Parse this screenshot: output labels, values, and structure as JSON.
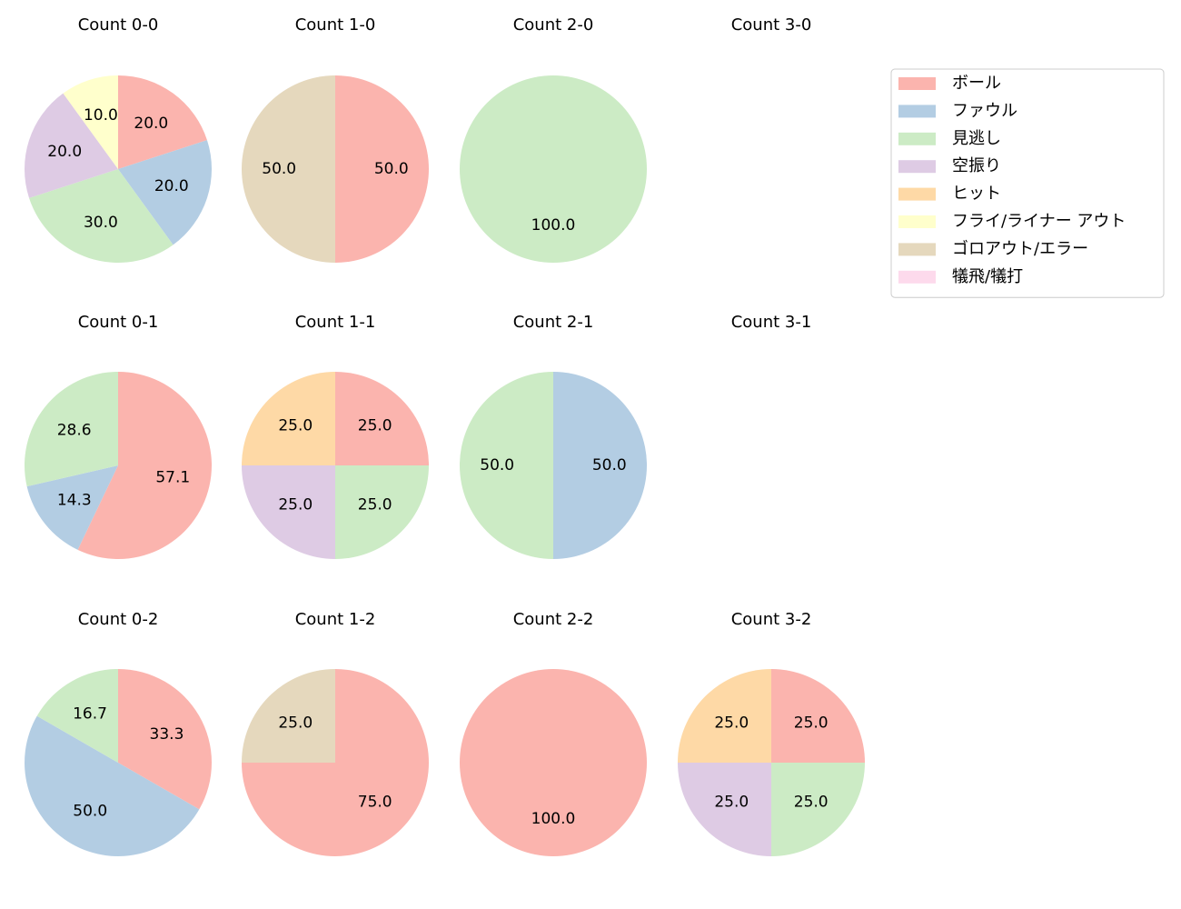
{
  "chart_data": [
    {
      "type": "pie",
      "title": "Count 0-0",
      "categories": [
        "ボール",
        "ファウル",
        "見逃し",
        "空振り",
        "フライ/ライナー アウト"
      ],
      "values": [
        20,
        20,
        30,
        20,
        10
      ],
      "value_labels": [
        "20.0",
        "20.0",
        "30.0",
        "20.0",
        "10.0"
      ],
      "colors": [
        "#fbb4ae",
        "#b3cde3",
        "#ccebc5",
        "#decbe4",
        "#ffffcc"
      ]
    },
    {
      "type": "pie",
      "title": "Count 1-0",
      "categories": [
        "ボール",
        "ゴロアウト/エラー"
      ],
      "values": [
        50,
        50
      ],
      "value_labels": [
        "50.0",
        "50.0"
      ],
      "colors": [
        "#fbb4ae",
        "#e5d8bd"
      ]
    },
    {
      "type": "pie",
      "title": "Count 2-0",
      "categories": [
        "見逃し"
      ],
      "values": [
        100
      ],
      "value_labels": [
        "100.0"
      ],
      "colors": [
        "#ccebc5"
      ]
    },
    {
      "type": "pie",
      "title": "Count 3-0",
      "categories": [],
      "values": [],
      "value_labels": [],
      "colors": []
    },
    {
      "type": "pie",
      "title": "Count 0-1",
      "categories": [
        "ボール",
        "ファウル",
        "見逃し"
      ],
      "values": [
        57.1,
        14.3,
        28.6
      ],
      "value_labels": [
        "57.1",
        "14.3",
        "28.6"
      ],
      "colors": [
        "#fbb4ae",
        "#b3cde3",
        "#ccebc5"
      ]
    },
    {
      "type": "pie",
      "title": "Count 1-1",
      "categories": [
        "ボール",
        "見逃し",
        "空振り",
        "ヒット"
      ],
      "values": [
        25,
        25,
        25,
        25
      ],
      "value_labels": [
        "25.0",
        "25.0",
        "25.0",
        "25.0"
      ],
      "colors": [
        "#fbb4ae",
        "#ccebc5",
        "#decbe4",
        "#fed9a6"
      ]
    },
    {
      "type": "pie",
      "title": "Count 2-1",
      "categories": [
        "ファウル",
        "見逃し"
      ],
      "values": [
        50,
        50
      ],
      "value_labels": [
        "50.0",
        "50.0"
      ],
      "colors": [
        "#b3cde3",
        "#ccebc5"
      ]
    },
    {
      "type": "pie",
      "title": "Count 3-1",
      "categories": [],
      "values": [],
      "value_labels": [],
      "colors": []
    },
    {
      "type": "pie",
      "title": "Count 0-2",
      "categories": [
        "ボール",
        "ファウル",
        "見逃し"
      ],
      "values": [
        33.3,
        50,
        16.7
      ],
      "value_labels": [
        "33.3",
        "50.0",
        "16.7"
      ],
      "colors": [
        "#fbb4ae",
        "#b3cde3",
        "#ccebc5"
      ]
    },
    {
      "type": "pie",
      "title": "Count 1-2",
      "categories": [
        "ボール",
        "ゴロアウト/エラー"
      ],
      "values": [
        75,
        25
      ],
      "value_labels": [
        "75.0",
        "25.0"
      ],
      "colors": [
        "#fbb4ae",
        "#e5d8bd"
      ]
    },
    {
      "type": "pie",
      "title": "Count 2-2",
      "categories": [
        "ボール"
      ],
      "values": [
        100
      ],
      "value_labels": [
        "100.0"
      ],
      "colors": [
        "#fbb4ae"
      ]
    },
    {
      "type": "pie",
      "title": "Count 3-2",
      "categories": [
        "ボール",
        "見逃し",
        "空振り",
        "ヒット"
      ],
      "values": [
        25,
        25,
        25,
        25
      ],
      "value_labels": [
        "25.0",
        "25.0",
        "25.0",
        "25.0"
      ],
      "colors": [
        "#fbb4ae",
        "#ccebc5",
        "#decbe4",
        "#fed9a6"
      ]
    }
  ],
  "legend": {
    "position": "upper right",
    "labels": [
      "ボール",
      "ファウル",
      "見逃し",
      "空振り",
      "ヒット",
      "フライ/ライナー アウト",
      "ゴロアウト/エラー",
      "犠飛/犠打"
    ],
    "colors": [
      "#fbb4ae",
      "#b3cde3",
      "#ccebc5",
      "#decbe4",
      "#fed9a6",
      "#ffffcc",
      "#e5d8bd",
      "#fddaec"
    ]
  }
}
